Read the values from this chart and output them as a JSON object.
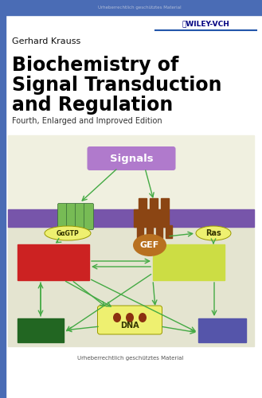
{
  "bg_color": "#ffffff",
  "top_bar_color": "#4a6cb5",
  "top_bar_text": "Urheberrechtlich geschütztes Material",
  "top_bar_text_color": "#b0bcd8",
  "wiley_text": "ⓇWILEY-VCH",
  "wiley_color": "#000080",
  "wiley_line_color": "#2255aa",
  "author": "Gerhard Krauss",
  "title_line1": "Biochemistry of",
  "title_line2": "Signal Transduction",
  "title_line3": "and Regulation",
  "edition": "Fourth, Enlarged and Improved Edition",
  "bottom_text": "Urheberrechtlich geschütztes Material",
  "membrane_color": "#7755aa",
  "signals_box_color": "#b07acc",
  "signals_text": "Signals",
  "gef_color": "#b87020",
  "ras_text": "Ras",
  "gagtp_text": "GαGTP",
  "red_box_color": "#cc2222",
  "green_box_color": "#226622",
  "yellow_box_color": "#ccdd44",
  "blue_box_color": "#5555aa",
  "dna_box_color": "#eef070",
  "dna_text": "DNA",
  "arrow_color": "#44aa44",
  "left_bar_color": "#4a6cb5",
  "receptor_color": "#8B4513",
  "cylinder_color": "#77bb55",
  "cylinder_edge": "#336633",
  "upper_diag_bg": "#f0f0e0",
  "lower_diag_bg": "#e4e4d0",
  "diag_border": "#aaaaaa",
  "gagtp_fill": "#eef070",
  "gagtp_edge": "#999900",
  "ras_fill": "#eef070",
  "ras_edge": "#999900"
}
